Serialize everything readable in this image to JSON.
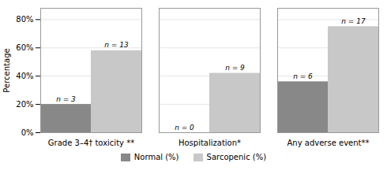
{
  "chart_data": {
    "type": "bar",
    "categories": [
      "Grade 3–4† toxicity **",
      "Hospitalization*",
      "Any adverse event**"
    ],
    "series": [
      {
        "name": "Normal (%)",
        "color": "#888888",
        "values": [
          20,
          0,
          36
        ],
        "annotations": [
          "n = 3",
          "n = 0",
          "n = 6"
        ]
      },
      {
        "name": "Sarcopenic (%)",
        "color": "#c8c8c8",
        "values": [
          58,
          42,
          75
        ],
        "annotations": [
          "n = 13",
          "n = 9",
          "n = 17"
        ]
      }
    ],
    "ylabel": "Percentage",
    "ylim": [
      0,
      88
    ],
    "yticks": [
      {
        "value": 0,
        "label": "0%"
      },
      {
        "value": 20,
        "label": "20%"
      },
      {
        "value": 40,
        "label": "40%"
      },
      {
        "value": 60,
        "label": "60%"
      },
      {
        "value": 80,
        "label": "80%"
      }
    ],
    "grid": true,
    "legend": "bottom"
  }
}
